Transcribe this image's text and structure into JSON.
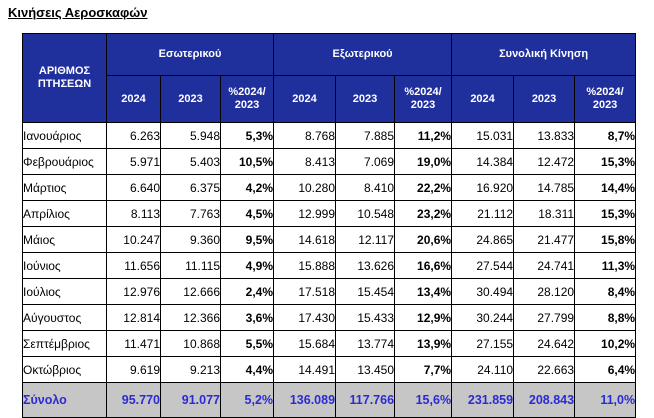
{
  "title": "Κινήσεις Αεροσκαφών",
  "header": {
    "row_label": [
      "ΑΡΙΘΜΟΣ",
      "ΠΤΗΣΕΩΝ"
    ],
    "groups": [
      "Εσωτερικού",
      "Εξωτερικού",
      "Συνολική Κίνηση"
    ],
    "subcols": [
      "2024",
      "2023",
      "%2024/",
      "2023"
    ]
  },
  "rows": [
    {
      "month": "Ιανουάριος",
      "cells": [
        "6.263",
        "5.948",
        "5,3%",
        "8.768",
        "7.885",
        "11,2%",
        "15.031",
        "13.833",
        "8,7%"
      ]
    },
    {
      "month": "Φεβρουάριος",
      "cells": [
        "5.971",
        "5.403",
        "10,5%",
        "8.413",
        "7.069",
        "19,0%",
        "14.384",
        "12.472",
        "15,3%"
      ]
    },
    {
      "month": "Μάρτιος",
      "cells": [
        "6.640",
        "6.375",
        "4,2%",
        "10.280",
        "8.410",
        "22,2%",
        "16.920",
        "14.785",
        "14,4%"
      ]
    },
    {
      "month": "Απρίλιος",
      "cells": [
        "8.113",
        "7.763",
        "4,5%",
        "12.999",
        "10.548",
        "23,2%",
        "21.112",
        "18.311",
        "15,3%"
      ]
    },
    {
      "month": "Μάιος",
      "cells": [
        "10.247",
        "9.360",
        "9,5%",
        "14.618",
        "12.117",
        "20,6%",
        "24.865",
        "21.477",
        "15,8%"
      ]
    },
    {
      "month": "Ιούνιος",
      "cells": [
        "11.656",
        "11.115",
        "4,9%",
        "15.888",
        "13.626",
        "16,6%",
        "27.544",
        "24.741",
        "11,3%"
      ]
    },
    {
      "month": "Ιούλιος",
      "cells": [
        "12.976",
        "12.666",
        "2,4%",
        "17.518",
        "15.454",
        "13,4%",
        "30.494",
        "28.120",
        "8,4%"
      ]
    },
    {
      "month": "Αύγουστος",
      "cells": [
        "12.814",
        "12.366",
        "3,6%",
        "17.430",
        "15.433",
        "12,9%",
        "30.244",
        "27.799",
        "8,8%"
      ]
    },
    {
      "month": "Σεπτέμβριος",
      "cells": [
        "11.471",
        "10.868",
        "5,5%",
        "15.684",
        "13.774",
        "13,9%",
        "27.155",
        "24.642",
        "10,2%"
      ]
    },
    {
      "month": "Οκτώβριος",
      "cells": [
        "9.619",
        "9.213",
        "4,4%",
        "14.491",
        "13.450",
        "7,7%",
        "24.110",
        "22.663",
        "6,4%"
      ]
    }
  ],
  "total": {
    "label": "Σύνολο",
    "cells": [
      "95.770",
      "91.077",
      "5,2%",
      "136.089",
      "117.766",
      "15,6%",
      "231.859",
      "208.843",
      "11,0%"
    ]
  },
  "colors": {
    "header_bg": "#1f2f9c",
    "header_text": "#ffffff",
    "total_bg": "#c6c6c6",
    "total_text": "#2b2bd4"
  }
}
